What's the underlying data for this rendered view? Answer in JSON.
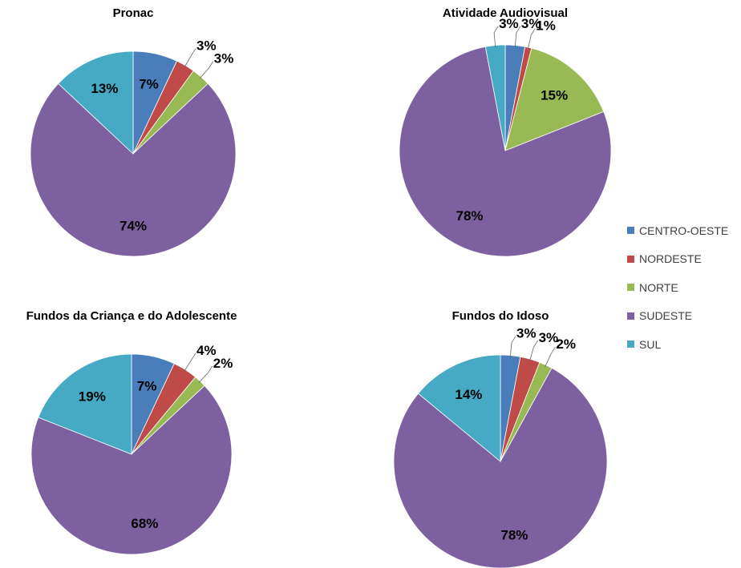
{
  "colors": {
    "CENTRO-OESTE": "#4a7ebb",
    "NORDESTE": "#be4b48",
    "NORTE": "#98b954",
    "SUDESTE": "#7d60a0",
    "SUL": "#46aac5"
  },
  "legend": [
    "CENTRO-OESTE",
    "NORDESTE",
    "NORTE",
    "SUDESTE",
    "SUL"
  ],
  "chart_data": [
    {
      "type": "pie",
      "title": "Pronac",
      "categories": [
        "CENTRO-OESTE",
        "NORDESTE",
        "NORTE",
        "SUDESTE",
        "SUL"
      ],
      "values": [
        7,
        3,
        3,
        74,
        13
      ],
      "labels": [
        "7%",
        "3%",
        "3%",
        "74%",
        "13%"
      ]
    },
    {
      "type": "pie",
      "title": "Atividade Audiovisual",
      "categories": [
        "CENTRO-OESTE",
        "NORDESTE",
        "NORTE",
        "SUDESTE",
        "SUL"
      ],
      "values": [
        3,
        1,
        15,
        78,
        3
      ],
      "labels": [
        "3%",
        "1%",
        "15%",
        "78%",
        "3%"
      ]
    },
    {
      "type": "pie",
      "title": "Fundos da Criança e do Adolescente",
      "categories": [
        "CENTRO-OESTE",
        "NORDESTE",
        "NORTE",
        "SUDESTE",
        "SUL"
      ],
      "values": [
        7,
        4,
        2,
        68,
        19
      ],
      "labels": [
        "7%",
        "4%",
        "2%",
        "68%",
        "19%"
      ]
    },
    {
      "type": "pie",
      "title": "Fundos do Idoso",
      "categories": [
        "CENTRO-OESTE",
        "NORDESTE",
        "NORTE",
        "SUDESTE",
        "SUL"
      ],
      "values": [
        3,
        3,
        2,
        78,
        14
      ],
      "labels": [
        "3%",
        "3%",
        "2%",
        "78%",
        "14%"
      ]
    }
  ]
}
